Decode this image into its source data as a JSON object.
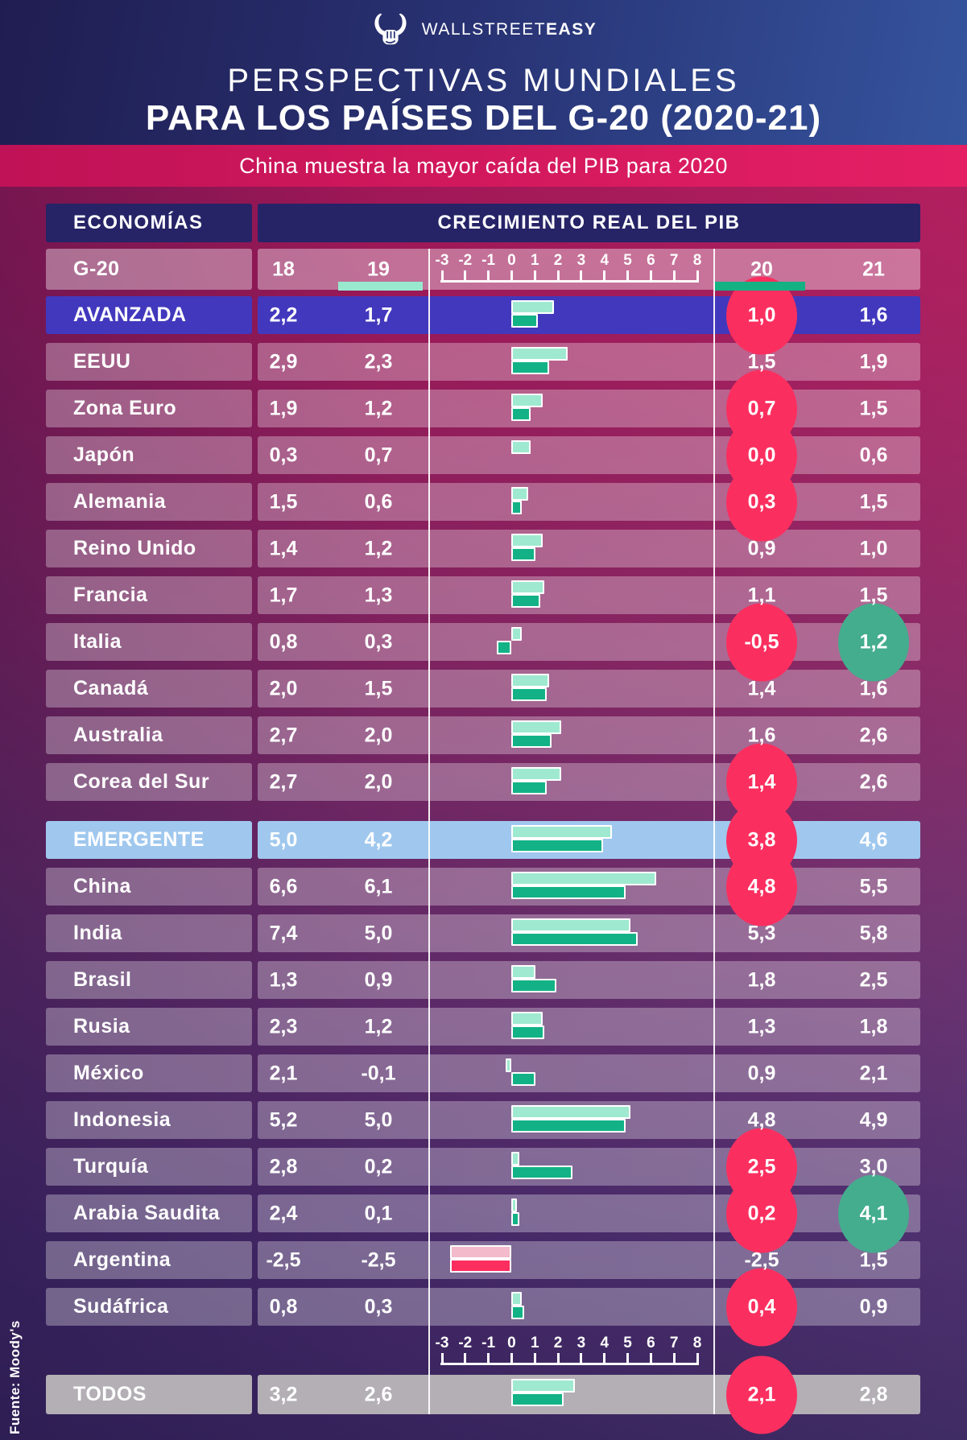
{
  "header": {
    "brand_light": "WALLSTREET",
    "brand_bold": "EASY",
    "title_line1": "PERSPECTIVAS MUNDIALES",
    "title_line2": "PARA LOS PAÍSES DEL G-20 (2020-21)",
    "subtitle": "China muestra la mayor caída del PIB para 2020"
  },
  "table": {
    "col_economies": "ECONOMÍAS",
    "col_gdp": "CRECIMIENTO REAL DEL PIB",
    "group_label": "G-20",
    "year_labels": [
      "18",
      "19",
      "20",
      "21"
    ],
    "axis_ticks": [
      "-3",
      "-2",
      "-1",
      "0",
      "1",
      "2",
      "3",
      "4",
      "5",
      "6",
      "7",
      "8"
    ],
    "rows": [
      {
        "name": "AVANZADA",
        "v18": "2,2",
        "v19": "1,7",
        "v20": "1,0",
        "v21": "1,6",
        "bar19": 1.7,
        "bar20": 1.0,
        "type": "advanced",
        "h20": "pink",
        "h21": null,
        "neg_style": false
      },
      {
        "name": "EEUU",
        "v18": "2,9",
        "v19": "2,3",
        "v20": "1,5",
        "v21": "1,9",
        "bar19": 2.3,
        "bar20": 1.5,
        "type": "normal",
        "h20": null,
        "h21": null,
        "neg_style": false
      },
      {
        "name": "Zona Euro",
        "v18": "1,9",
        "v19": "1,2",
        "v20": "0,7",
        "v21": "1,5",
        "bar19": 1.2,
        "bar20": 0.7,
        "type": "normal",
        "h20": "pink",
        "h21": null,
        "neg_style": false
      },
      {
        "name": "Japón",
        "v18": "0,3",
        "v19": "0,7",
        "v20": "0,0",
        "v21": "0,6",
        "bar19": 0.7,
        "bar20": 0.0,
        "type": "normal",
        "h20": "pink",
        "h21": null,
        "neg_style": false
      },
      {
        "name": "Alemania",
        "v18": "1,5",
        "v19": "0,6",
        "v20": "0,3",
        "v21": "1,5",
        "bar19": 0.6,
        "bar20": 0.3,
        "type": "normal",
        "h20": "pink",
        "h21": null,
        "neg_style": false
      },
      {
        "name": "Reino Unido",
        "v18": "1,4",
        "v19": "1,2",
        "v20": "0,9",
        "v21": "1,0",
        "bar19": 1.2,
        "bar20": 0.9,
        "type": "normal",
        "h20": null,
        "h21": null,
        "neg_style": false
      },
      {
        "name": "Francia",
        "v18": "1,7",
        "v19": "1,3",
        "v20": "1,1",
        "v21": "1,5",
        "bar19": 1.3,
        "bar20": 1.1,
        "type": "normal",
        "h20": null,
        "h21": null,
        "neg_style": false
      },
      {
        "name": "Italia",
        "v18": "0,8",
        "v19": "0,3",
        "v20": "-0,5",
        "v21": "1,2",
        "bar19": 0.3,
        "bar20": -0.5,
        "type": "normal",
        "h20": "pink",
        "h21": "green",
        "neg_style": false
      },
      {
        "name": "Canadá",
        "v18": "2,0",
        "v19": "1,5",
        "v20": "1,4",
        "v21": "1,6",
        "bar19": 1.5,
        "bar20": 1.4,
        "type": "normal",
        "h20": null,
        "h21": null,
        "neg_style": false
      },
      {
        "name": "Australia",
        "v18": "2,7",
        "v19": "2,0",
        "v20": "1,6",
        "v21": "2,6",
        "bar19": 2.0,
        "bar20": 1.6,
        "type": "normal",
        "h20": null,
        "h21": null,
        "neg_style": false
      },
      {
        "name": "Corea del Sur",
        "v18": "2,7",
        "v19": "2,0",
        "v20": "1,4",
        "v21": "2,6",
        "bar19": 2.0,
        "bar20": 1.4,
        "type": "normal",
        "h20": "pink",
        "h21": null,
        "neg_style": false
      },
      {
        "name": "EMERGENTE",
        "v18": "5,0",
        "v19": "4,2",
        "v20": "3,8",
        "v21": "4,6",
        "bar19": 4.2,
        "bar20": 3.8,
        "type": "emerging",
        "h20": "pink",
        "h21": null,
        "neg_style": false
      },
      {
        "name": "China",
        "v18": "6,6",
        "v19": "6,1",
        "v20": "4,8",
        "v21": "5,5",
        "bar19": 6.1,
        "bar20": 4.8,
        "type": "normal",
        "h20": "pink",
        "h21": null,
        "neg_style": false
      },
      {
        "name": "India",
        "v18": "7,4",
        "v19": "5,0",
        "v20": "5,3",
        "v21": "5,8",
        "bar19": 5.0,
        "bar20": 5.3,
        "type": "normal",
        "h20": null,
        "h21": null,
        "neg_style": false
      },
      {
        "name": "Brasil",
        "v18": "1,3",
        "v19": "0,9",
        "v20": "1,8",
        "v21": "2,5",
        "bar19": 0.9,
        "bar20": 1.8,
        "type": "normal",
        "h20": null,
        "h21": null,
        "neg_style": false
      },
      {
        "name": "Rusia",
        "v18": "2,3",
        "v19": "1,2",
        "v20": "1,3",
        "v21": "1,8",
        "bar19": 1.2,
        "bar20": 1.3,
        "type": "normal",
        "h20": null,
        "h21": null,
        "neg_style": false
      },
      {
        "name": "México",
        "v18": "2,1",
        "v19": "-0,1",
        "v20": "0,9",
        "v21": "2,1",
        "bar19": -0.1,
        "bar20": 0.9,
        "type": "normal",
        "h20": null,
        "h21": null,
        "neg_style": false
      },
      {
        "name": "Indonesia",
        "v18": "5,2",
        "v19": "5,0",
        "v20": "4,8",
        "v21": "4,9",
        "bar19": 5.0,
        "bar20": 4.8,
        "type": "normal",
        "h20": null,
        "h21": null,
        "neg_style": false
      },
      {
        "name": "Turquía",
        "v18": "2,8",
        "v19": "0,2",
        "v20": "2,5",
        "v21": "3,0",
        "bar19": 0.2,
        "bar20": 2.5,
        "type": "normal",
        "h20": "pink",
        "h21": null,
        "neg_style": false
      },
      {
        "name": "Arabia Saudita",
        "v18": "2,4",
        "v19": "0,1",
        "v20": "0,2",
        "v21": "4,1",
        "bar19": 0.1,
        "bar20": 0.2,
        "type": "normal",
        "h20": "pink",
        "h21": "green",
        "neg_style": false
      },
      {
        "name": "Argentina",
        "v18": "-2,5",
        "v19": "-2,5",
        "v20": "-2,5",
        "v21": "1,5",
        "bar19": -2.5,
        "bar20": -2.5,
        "type": "normal",
        "h20": null,
        "h21": null,
        "neg_style": true
      },
      {
        "name": "Sudáfrica",
        "v18": "0,8",
        "v19": "0,3",
        "v20": "0,4",
        "v21": "0,9",
        "bar19": 0.3,
        "bar20": 0.4,
        "type": "normal",
        "h20": "pink",
        "h21": null,
        "neg_style": false
      },
      {
        "name": "TODOS",
        "v18": "3,2",
        "v19": "2,6",
        "v20": "2,1",
        "v21": "2,8",
        "bar19": 2.6,
        "bar20": 2.1,
        "type": "todos",
        "h20": "pink",
        "h21": null,
        "neg_style": false
      }
    ]
  },
  "footer": {
    "source": "Fuente: Moody's"
  },
  "colors": {
    "bar_2019_mint": "#9FE9D1",
    "bar_2020_green": "#12B286",
    "bar_negative_light_pink": "#F3BACC",
    "bar_negative_pink": "#FC2D5F",
    "highlight_pink": "#FB2F5F",
    "highlight_green": "#44AD8D",
    "row_advanced_blue": "#4238BD",
    "row_emerging_blue": "#A0C8EE",
    "row_todos_gray": "#B3AFB5",
    "header_navy": "#262367",
    "underline_19": "#98E9CE",
    "underline_20": "#14B183"
  },
  "chart_data": {
    "type": "bar",
    "orientation": "horizontal",
    "title": "CRECIMIENTO REAL DEL PIB",
    "subtitle": "China muestra la mayor caída del PIB para 2020",
    "categories": [
      "AVANZADA",
      "EEUU",
      "Zona Euro",
      "Japón",
      "Alemania",
      "Reino Unido",
      "Francia",
      "Italia",
      "Canadá",
      "Australia",
      "Corea del Sur",
      "EMERGENTE",
      "China",
      "India",
      "Brasil",
      "Rusia",
      "México",
      "Indonesia",
      "Turquía",
      "Arabia Saudita",
      "Argentina",
      "Sudáfrica",
      "TODOS"
    ],
    "series": [
      {
        "name": "18",
        "values": [
          2.2,
          2.9,
          1.9,
          0.3,
          1.5,
          1.4,
          1.7,
          0.8,
          2.0,
          2.7,
          2.7,
          5.0,
          6.6,
          7.4,
          1.3,
          2.3,
          2.1,
          5.2,
          2.8,
          2.4,
          -2.5,
          0.8,
          3.2
        ]
      },
      {
        "name": "19",
        "values": [
          1.7,
          2.3,
          1.2,
          0.7,
          0.6,
          1.2,
          1.3,
          0.3,
          1.5,
          2.0,
          2.0,
          4.2,
          6.1,
          5.0,
          0.9,
          1.2,
          -0.1,
          5.0,
          0.2,
          0.1,
          -2.5,
          0.3,
          2.6
        ]
      },
      {
        "name": "20",
        "values": [
          1.0,
          1.5,
          0.7,
          0.0,
          0.3,
          0.9,
          1.1,
          -0.5,
          1.4,
          1.6,
          1.4,
          3.8,
          4.8,
          5.3,
          1.8,
          1.3,
          0.9,
          4.8,
          2.5,
          0.2,
          -2.5,
          0.4,
          2.1
        ]
      },
      {
        "name": "21",
        "values": [
          1.6,
          1.9,
          1.5,
          0.6,
          1.5,
          1.0,
          1.5,
          1.2,
          1.6,
          2.6,
          2.6,
          4.6,
          5.5,
          5.8,
          2.5,
          1.8,
          2.1,
          4.9,
          3.0,
          4.1,
          1.5,
          0.9,
          2.8
        ]
      }
    ],
    "bars_plotted_for_series": [
      "19",
      "20"
    ],
    "xlim": [
      -3,
      8
    ],
    "axis_ticks": [
      -3,
      -2,
      -1,
      0,
      1,
      2,
      3,
      4,
      5,
      6,
      7,
      8
    ],
    "highlighted_2020_pink": [
      "AVANZADA",
      "Zona Euro",
      "Japón",
      "Alemania",
      "Italia",
      "Corea del Sur",
      "EMERGENTE",
      "China",
      "Turquía",
      "Arabia Saudita",
      "Sudáfrica",
      "TODOS"
    ],
    "highlighted_2021_green": [
      "Italia",
      "Arabia Saudita"
    ]
  }
}
